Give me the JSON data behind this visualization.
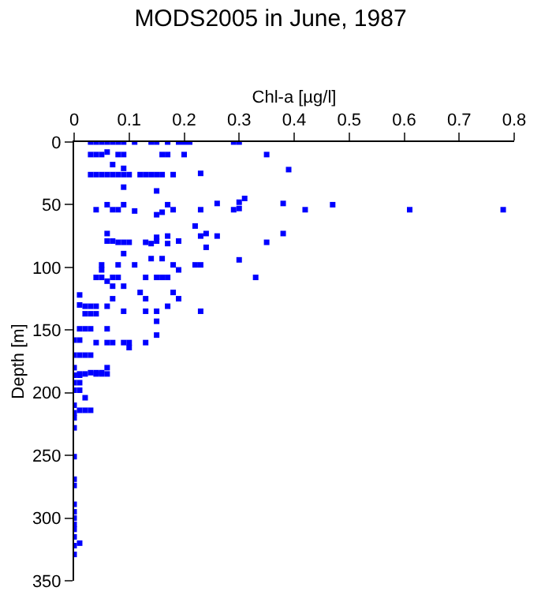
{
  "chart_data": {
    "type": "scatter",
    "title": "MODS2005 in June, 1987",
    "xlabel": "Chl-a [µg/l]",
    "ylabel": "Depth [m]",
    "xlim": [
      0,
      0.8
    ],
    "xticks": [
      0,
      0.1,
      0.2,
      0.3,
      0.4,
      0.5,
      0.6,
      0.7,
      0.8
    ],
    "ylim": [
      350,
      0
    ],
    "yticks": [
      0,
      50,
      100,
      150,
      200,
      250,
      300,
      350
    ],
    "marker": "square",
    "series": [
      {
        "color": "#0000ff",
        "x": [
          0.03,
          0.04,
          0.05,
          0.06,
          0.07,
          0.08,
          0.09,
          0.11,
          0.14,
          0.15,
          0.17,
          0.19,
          0.2,
          0.21,
          0.29,
          0.3,
          0.03,
          0.04,
          0.05,
          0.06,
          0.08,
          0.09,
          0.16,
          0.17,
          0.2,
          0.35,
          0.07,
          0.09,
          0.39,
          0.03,
          0.04,
          0.05,
          0.06,
          0.07,
          0.08,
          0.09,
          0.1,
          0.12,
          0.13,
          0.14,
          0.15,
          0.16,
          0.18,
          0.23,
          0.09,
          0.15,
          0.31,
          0.3,
          0.26,
          0.38,
          0.47,
          0.06,
          0.09,
          0.17,
          0.04,
          0.07,
          0.08,
          0.11,
          0.18,
          0.23,
          0.29,
          0.3,
          0.42,
          0.61,
          0.78,
          0.15,
          0.16,
          0.22,
          0.06,
          0.06,
          0.07,
          0.08,
          0.09,
          0.1,
          0.13,
          0.14,
          0.15,
          0.15,
          0.17,
          0.17,
          0.19,
          0.23,
          0.24,
          0.24,
          0.26,
          0.35,
          0.38,
          0.09,
          0.14,
          0.16,
          0.3,
          0.05,
          0.08,
          0.11,
          0.18,
          0.22,
          0.23,
          0.05,
          0.19,
          0.04,
          0.05,
          0.07,
          0.08,
          0.13,
          0.15,
          0.16,
          0.17,
          0.33,
          0.06,
          0.07,
          0.09,
          0.12,
          0.18,
          0.13,
          0.19,
          0.07,
          0.01,
          0.01,
          0.02,
          0.03,
          0.04,
          0.06,
          0.17,
          0.09,
          0.13,
          0.15,
          0.23,
          0.02,
          0.03,
          0.04,
          0.15,
          0.01,
          0.02,
          0.03,
          0.06,
          0.15,
          0.0,
          0.01,
          0.04,
          0.06,
          0.07,
          0.09,
          0.1,
          0.13,
          0.1,
          0.0,
          0.01,
          0.02,
          0.03,
          0.06,
          0.0,
          0.01,
          0.02,
          0.04,
          0.05,
          0.06,
          0.0,
          0.0,
          0.01,
          0.03,
          0.04,
          0.05,
          0.0,
          0.01,
          0.0,
          0.01,
          0.02,
          0.0,
          0.01,
          0.02,
          0.03,
          0.0,
          0.0,
          0.0,
          0.0,
          0.0,
          0.0,
          0.0,
          0.0,
          0.0,
          0.0,
          0.0,
          0.0,
          0.0,
          0.0,
          0.01
        ],
        "values": [
          0,
          0,
          0,
          0,
          0,
          0,
          0,
          0,
          0,
          0,
          0,
          0,
          0,
          0,
          0,
          0,
          10,
          10,
          10,
          8,
          10,
          10,
          10,
          10,
          10,
          10,
          18,
          21,
          22,
          26,
          26,
          26,
          26,
          26,
          26,
          26,
          26,
          26,
          26,
          26,
          26,
          26,
          26,
          25,
          36,
          39,
          45,
          48,
          49,
          49,
          50,
          50,
          50,
          50,
          54,
          54,
          54,
          55,
          54,
          54,
          54,
          53,
          54,
          54,
          54,
          58,
          56,
          67,
          73,
          79,
          79,
          80,
          80,
          80,
          80,
          81,
          76,
          79,
          81,
          75,
          79,
          75,
          73,
          84,
          75,
          80,
          73,
          89,
          93,
          93,
          94,
          98,
          98,
          98,
          98,
          98,
          98,
          102,
          102,
          108,
          108,
          108,
          108,
          108,
          108,
          108,
          108,
          108,
          111,
          115,
          115,
          120,
          120,
          125,
          125,
          125,
          122,
          130,
          131,
          131,
          131,
          131,
          131,
          135,
          135,
          135,
          135,
          137,
          137,
          137,
          143,
          149,
          149,
          149,
          149,
          154,
          158,
          158,
          160,
          160,
          160,
          160,
          160,
          160,
          164,
          170,
          170,
          170,
          170,
          180,
          180,
          185,
          185,
          185,
          185,
          185,
          186,
          186,
          186,
          184,
          184,
          184,
          192,
          192,
          198,
          198,
          204,
          210,
          214,
          214,
          214,
          216,
          220,
          228,
          251,
          269,
          274,
          289,
          295,
          300,
          305,
          309,
          315,
          322,
          329,
          320
        ]
      }
    ]
  }
}
